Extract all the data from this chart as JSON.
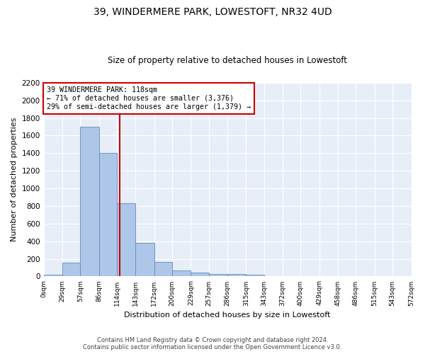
{
  "title": "39, WINDERMERE PARK, LOWESTOFT, NR32 4UD",
  "subtitle": "Size of property relative to detached houses in Lowestoft",
  "xlabel": "Distribution of detached houses by size in Lowestoft",
  "ylabel": "Number of detached properties",
  "bin_edges": [
    0,
    29,
    57,
    86,
    114,
    143,
    172,
    200,
    229,
    257,
    286,
    315,
    343,
    372,
    400,
    429,
    458,
    486,
    515,
    543,
    572
  ],
  "bar_heights": [
    20,
    155,
    1700,
    1400,
    835,
    385,
    165,
    65,
    40,
    30,
    30,
    20,
    0,
    0,
    0,
    0,
    0,
    0,
    0,
    0
  ],
  "bar_color": "#aec6e8",
  "bar_edge_color": "#5a8fc0",
  "property_size": 118,
  "red_line_color": "#cc0000",
  "annotation_text": "39 WINDERMERE PARK: 118sqm\n← 71% of detached houses are smaller (3,376)\n29% of semi-detached houses are larger (1,379) →",
  "annotation_box_color": "#ffffff",
  "annotation_box_edge": "#cc0000",
  "ylim": [
    0,
    2200
  ],
  "yticks": [
    0,
    200,
    400,
    600,
    800,
    1000,
    1200,
    1400,
    1600,
    1800,
    2000,
    2200
  ],
  "bg_color": "#e8eef8",
  "footer_line1": "Contains HM Land Registry data © Crown copyright and database right 2024.",
  "footer_line2": "Contains public sector information licensed under the Open Government Licence v3.0."
}
